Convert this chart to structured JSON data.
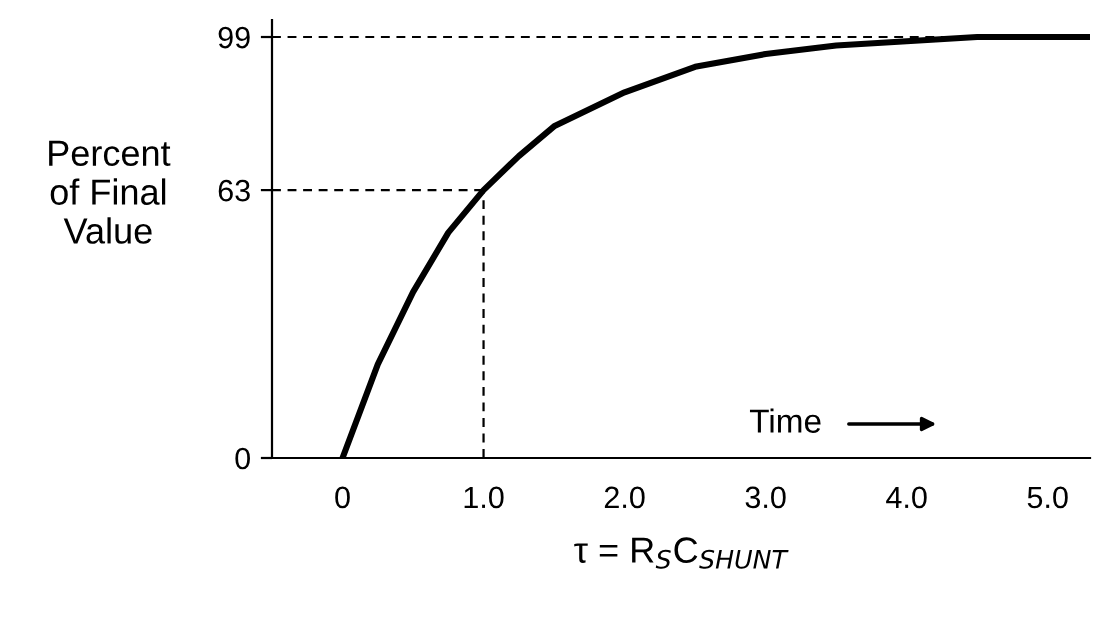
{
  "chart_data": {
    "type": "line",
    "ylabel": "Percent\nof Final\nValue",
    "xlabel": "τ = R$_{S}$C$_{SHUNT}$",
    "annotations": [
      "Time"
    ],
    "x": [
      0,
      0.25,
      0.5,
      0.75,
      1,
      1.25,
      1.5,
      2,
      2.5,
      3,
      3.5,
      4,
      4.5,
      5,
      5.3
    ],
    "series": [
      {
        "color": "#000000",
        "values": [
          0,
          22,
          39,
          53,
          63,
          71,
          78,
          86,
          92,
          95,
          97,
          98,
          99,
          99,
          99
        ]
      }
    ],
    "xlim": [
      -0.5,
      5.3
    ],
    "ylim": [
      0,
      103
    ],
    "xticks": [
      0,
      {
        "value": 1,
        "label": "1.0"
      },
      {
        "value": 2,
        "label": "2.0"
      },
      {
        "value": 3,
        "label": "3.0"
      },
      {
        "value": 4,
        "label": "4.0"
      },
      {
        "value": 5,
        "label": "5.0"
      }
    ],
    "yticks": [
      0,
      63,
      99
    ],
    "ref_lines": [
      {
        "axis": "y",
        "value": 63,
        "line_style": "dashed"
      },
      {
        "axis": "x",
        "value": 1,
        "line_style": "dashed"
      },
      {
        "axis": "y",
        "value": 99,
        "line_style": "dashed"
      }
    ],
    "grid": false,
    "legend": false,
    "line_style": "solid",
    "marker": "none"
  }
}
